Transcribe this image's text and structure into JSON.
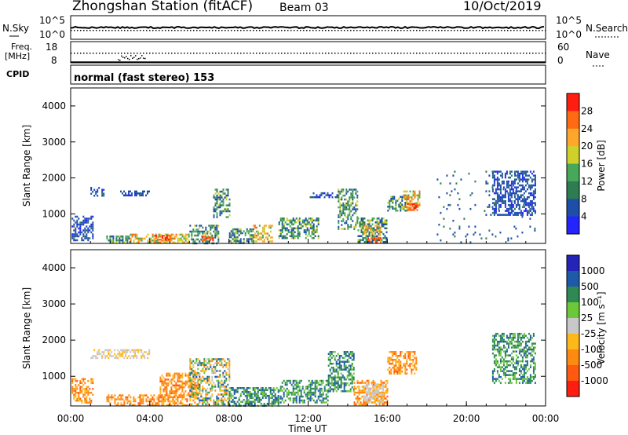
{
  "header": {
    "station": "Zhongshan Station (fitACF)",
    "beam": "Beam 03",
    "date": "10/Oct/2019"
  },
  "noise_panel": {
    "left_label": "N.Sky",
    "right_label": "N.Search",
    "left_ticks": [
      "10^5",
      "10^0"
    ],
    "right_ticks": [
      "10^5",
      "10^0"
    ]
  },
  "freq_panel": {
    "left_label_1": "Freq.",
    "left_label_2": "[MHz]",
    "left_ticks": [
      "18",
      "8"
    ],
    "right_label": "Nave",
    "right_ticks": [
      "60",
      "0"
    ]
  },
  "cpid_panel": {
    "label": "CPID",
    "text": "normal (fast stereo) 153"
  },
  "chart_data": [
    {
      "type": "heatmap",
      "title": "",
      "ylabel": "Slant Range [km]",
      "ylim": [
        180,
        4500
      ],
      "yticks": [
        "1000",
        "2000",
        "3000",
        "4000"
      ],
      "colorbar_label": "Power [dB]",
      "colorbar_ticks": [
        "4",
        "8",
        "12",
        "16",
        "20",
        "24",
        "28"
      ],
      "colors": [
        "#2424ff",
        "#1e4fa8",
        "#2e7d52",
        "#48a85a",
        "#cfd12a",
        "#ffa72a",
        "#ff6a12",
        "#ff1d12"
      ],
      "patches": [
        {
          "t": [
            0.05,
            1.1
          ],
          "r": [
            250,
            950
          ],
          "v": "low"
        },
        {
          "t": [
            1.0,
            1.7
          ],
          "r": [
            1500,
            1750
          ],
          "v": "low"
        },
        {
          "t": [
            2.5,
            4.0
          ],
          "r": [
            1500,
            1650
          ],
          "v": "low"
        },
        {
          "t": [
            1.8,
            3.0
          ],
          "r": [
            200,
            400
          ],
          "v": "mid"
        },
        {
          "t": [
            3.0,
            6.0
          ],
          "r": [
            200,
            450
          ],
          "v": "high"
        },
        {
          "t": [
            4.2,
            5.0
          ],
          "r": [
            300,
            420
          ],
          "v": "max"
        },
        {
          "t": [
            6.0,
            7.5
          ],
          "r": [
            200,
            700
          ],
          "v": "mid"
        },
        {
          "t": [
            6.6,
            7.2
          ],
          "r": [
            250,
            400
          ],
          "v": "max"
        },
        {
          "t": [
            7.2,
            8.0
          ],
          "r": [
            900,
            1700
          ],
          "v": "mid"
        },
        {
          "t": [
            8.0,
            9.2
          ],
          "r": [
            200,
            600
          ],
          "v": "mid"
        },
        {
          "t": [
            9.2,
            10.2
          ],
          "r": [
            250,
            700
          ],
          "v": "high"
        },
        {
          "t": [
            10.5,
            12.5
          ],
          "r": [
            300,
            900
          ],
          "v": "mid"
        },
        {
          "t": [
            12.0,
            13.5
          ],
          "r": [
            1450,
            1600
          ],
          "v": "low"
        },
        {
          "t": [
            13.5,
            14.5
          ],
          "r": [
            600,
            1700
          ],
          "v": "mid"
        },
        {
          "t": [
            14.5,
            16.0
          ],
          "r": [
            200,
            900
          ],
          "v": "mid"
        },
        {
          "t": [
            14.8,
            15.6
          ],
          "r": [
            400,
            700
          ],
          "v": "high"
        },
        {
          "t": [
            15.0,
            15.7
          ],
          "r": [
            200,
            350
          ],
          "v": "max"
        },
        {
          "t": [
            16.0,
            17.0
          ],
          "r": [
            1100,
            1500
          ],
          "v": "mid"
        },
        {
          "t": [
            16.8,
            17.6
          ],
          "r": [
            1150,
            1650
          ],
          "v": "high"
        },
        {
          "t": [
            17.0,
            17.5
          ],
          "r": [
            1100,
            1300
          ],
          "v": "max"
        },
        {
          "t": [
            21.3,
            23.5
          ],
          "r": [
            1000,
            2200
          ],
          "v": "low"
        },
        {
          "t": [
            18.5,
            23.5
          ],
          "r": [
            200,
            2200
          ],
          "v": "sparse"
        }
      ]
    },
    {
      "type": "heatmap",
      "title": "",
      "ylabel": "Slant Range [km]",
      "xlabel": "Time UT",
      "xticks": [
        "00:00",
        "04:00",
        "08:00",
        "12:00",
        "16:00",
        "20:00",
        "00:00"
      ],
      "ylim": [
        180,
        4500
      ],
      "yticks": [
        "1000",
        "2000",
        "3000",
        "4000"
      ],
      "colorbar_label": "Velocity [m s⁻¹]",
      "colorbar_ticks": [
        "1000",
        "500",
        "100",
        "25",
        "-25",
        "-100",
        "-500",
        "-1000"
      ],
      "colors": [
        "#2424b8",
        "#1e5aa8",
        "#2e8a52",
        "#6cc838",
        "#c8c8c8",
        "#ffb81a",
        "#ff8a12",
        "#ff5a10",
        "#ff1d12"
      ],
      "patches": [
        {
          "t": [
            0.05,
            1.1
          ],
          "r": [
            250,
            950
          ],
          "v": "neg"
        },
        {
          "t": [
            1.0,
            4.0
          ],
          "r": [
            1500,
            1750
          ],
          "v": "zero"
        },
        {
          "t": [
            1.8,
            6.0
          ],
          "r": [
            200,
            500
          ],
          "v": "neg"
        },
        {
          "t": [
            4.5,
            6.5
          ],
          "r": [
            400,
            1100
          ],
          "v": "neg"
        },
        {
          "t": [
            6.0,
            8.0
          ],
          "r": [
            200,
            1500
          ],
          "v": "mix"
        },
        {
          "t": [
            8.0,
            10.5
          ],
          "r": [
            200,
            700
          ],
          "v": "pos"
        },
        {
          "t": [
            10.5,
            13.0
          ],
          "r": [
            300,
            900
          ],
          "v": "pos"
        },
        {
          "t": [
            13.0,
            14.3
          ],
          "r": [
            600,
            1700
          ],
          "v": "pos"
        },
        {
          "t": [
            14.3,
            16.0
          ],
          "r": [
            200,
            900
          ],
          "v": "neg"
        },
        {
          "t": [
            14.8,
            15.8
          ],
          "r": [
            300,
            800
          ],
          "v": "zero"
        },
        {
          "t": [
            16.0,
            17.5
          ],
          "r": [
            1100,
            1700
          ],
          "v": "neg"
        },
        {
          "t": [
            21.3,
            23.5
          ],
          "r": [
            800,
            2200
          ],
          "v": "pos"
        }
      ]
    }
  ]
}
